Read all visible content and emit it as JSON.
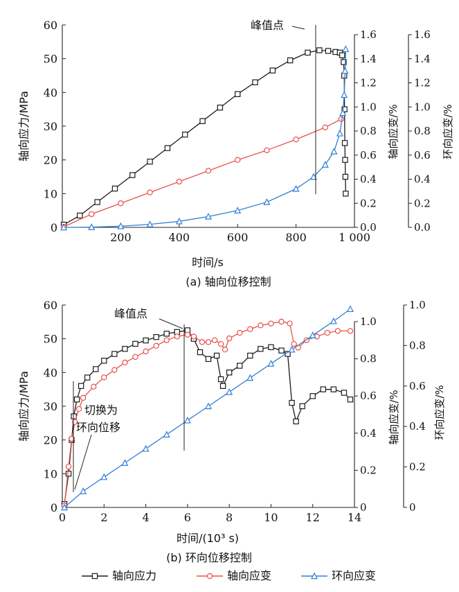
{
  "colors": {
    "axial_stress": "#1a1a1a",
    "axial_strain": "#e8504a",
    "hoop_strain": "#2f7fd2"
  },
  "legend": {
    "items": [
      {
        "label": "轴向应力",
        "color": "#1a1a1a",
        "marker": "square"
      },
      {
        "label": "轴向应变",
        "color": "#e8504a",
        "marker": "circle"
      },
      {
        "label": "环向应变",
        "color": "#2f7fd2",
        "marker": "triangle"
      }
    ]
  },
  "chart_data": [
    {
      "type": "line",
      "caption": "(a) 轴向位移控制",
      "xlabel": "时间/s",
      "ylabel_left": "轴向应力/MPa",
      "ylabel_right1": "轴向应变/%",
      "ylabel_right2": "环向应变/%",
      "xlim": [
        0,
        1000
      ],
      "ylim_left": [
        0,
        60
      ],
      "ylim_right": [
        0,
        1.6
      ],
      "x_ticks": [
        "200",
        "400",
        "600",
        "800",
        "1 000"
      ],
      "x_tick_values": [
        200,
        400,
        600,
        800,
        1000
      ],
      "y_left_ticks": [
        "0",
        "10",
        "20",
        "30",
        "40",
        "50",
        "60"
      ],
      "y_right_ticks": [
        "0.0",
        "0.2",
        "0.4",
        "0.6",
        "0.8",
        "1.0",
        "1.2",
        "1.4",
        "1.6"
      ],
      "annotation": {
        "text": "峰值点",
        "x": 920
      },
      "series": [
        {
          "name": "轴向应力",
          "axis": "left",
          "marker": "square",
          "x": [
            5,
            60,
            120,
            180,
            240,
            300,
            360,
            420,
            480,
            540,
            600,
            660,
            720,
            780,
            840,
            880,
            910,
            935,
            950,
            958,
            963,
            965,
            966,
            967,
            968,
            969,
            970
          ],
          "y": [
            0.8,
            3.5,
            7.5,
            11.5,
            15.5,
            19.5,
            23.5,
            27.5,
            31.5,
            35.5,
            39.5,
            43,
            46.5,
            49.5,
            51.8,
            52.5,
            52.3,
            52,
            51.8,
            51,
            49,
            45,
            35,
            25,
            20,
            15,
            10
          ]
        },
        {
          "name": "轴向应变",
          "axis": "right",
          "marker": "circle",
          "x": [
            5,
            100,
            200,
            300,
            400,
            500,
            600,
            700,
            800,
            900,
            955
          ],
          "y": [
            0.005,
            0.11,
            0.2,
            0.29,
            0.38,
            0.47,
            0.56,
            0.64,
            0.73,
            0.83,
            0.9
          ]
        },
        {
          "name": "环向应变",
          "axis": "right",
          "marker": "triangle",
          "x": [
            5,
            100,
            200,
            300,
            400,
            500,
            600,
            700,
            800,
            860,
            900,
            930,
            950,
            960,
            965,
            968,
            970
          ],
          "y": [
            0.0,
            0.002,
            0.01,
            0.025,
            0.05,
            0.09,
            0.14,
            0.21,
            0.32,
            0.42,
            0.52,
            0.63,
            0.78,
            0.95,
            1.1,
            1.3,
            1.48
          ]
        }
      ]
    },
    {
      "type": "line",
      "caption": "(b) 环向位移控制",
      "xlabel": "时间/(10³ s)",
      "ylabel_left": "轴向应力/MPa",
      "ylabel_right1": "轴向应变/%",
      "ylabel_right2": "环向应变/%",
      "xlim": [
        0,
        14
      ],
      "ylim_left": [
        0,
        60
      ],
      "ylim_right1": [
        0,
        1.0
      ],
      "ylim_right2": [
        0,
        1.0
      ],
      "x_ticks": [
        "0",
        "2",
        "4",
        "6",
        "8",
        "10",
        "12",
        "14"
      ],
      "x_tick_values": [
        0,
        2,
        4,
        6,
        8,
        10,
        12,
        14
      ],
      "y_left_ticks": [
        "0",
        "10",
        "20",
        "30",
        "40",
        "50",
        "60"
      ],
      "y_right1_ticks": [
        "0",
        "0.2",
        "0.4",
        "0.6",
        "0.8",
        "1.0"
      ],
      "y_right2_ticks": [
        "0",
        "0.2",
        "0.4",
        "0.6",
        "0.8",
        "1.0"
      ],
      "annotations": [
        {
          "text": "峰值点",
          "x": 6.0
        },
        {
          "text": "切换为\n环向位移",
          "x": 0.55
        }
      ],
      "series": [
        {
          "name": "轴向应力",
          "axis": "left",
          "marker": "square",
          "x": [
            0.1,
            0.3,
            0.45,
            0.55,
            0.7,
            0.9,
            1.2,
            1.6,
            2.0,
            2.5,
            3.0,
            3.5,
            4.0,
            4.5,
            5.0,
            5.5,
            6.0,
            6.3,
            6.6,
            7.0,
            7.4,
            7.6,
            7.7,
            8.0,
            8.5,
            9.0,
            9.5,
            10.0,
            10.5,
            10.8,
            11.0,
            11.2,
            11.5,
            12.0,
            12.5,
            13.0,
            13.5,
            13.8
          ],
          "y": [
            1,
            10,
            20,
            27,
            32,
            36,
            38.5,
            41,
            43.5,
            45.5,
            47,
            48.5,
            49.5,
            50.5,
            51.5,
            52,
            52.5,
            50,
            46,
            44,
            45,
            38,
            36,
            40,
            42,
            45,
            47,
            47.5,
            46.5,
            45.5,
            31,
            25.5,
            30,
            33,
            35,
            35,
            34,
            32
          ]
        },
        {
          "name": "轴向应变",
          "axis": "right1",
          "marker": "circle",
          "x": [
            0.1,
            0.3,
            0.45,
            0.6,
            0.8,
            1.0,
            1.5,
            2.0,
            2.5,
            3.0,
            3.5,
            4.0,
            4.5,
            5.0,
            5.5,
            6.0,
            6.3,
            6.7,
            7.0,
            7.3,
            7.6,
            7.8,
            8.0,
            8.5,
            9.0,
            9.5,
            10.0,
            10.5,
            10.9,
            11.1,
            11.3,
            11.7,
            12.2,
            12.7,
            13.2,
            13.8
          ],
          "y": [
            0.01,
            0.22,
            0.37,
            0.46,
            0.53,
            0.59,
            0.65,
            0.7,
            0.74,
            0.78,
            0.81,
            0.84,
            0.87,
            0.9,
            0.92,
            0.93,
            0.92,
            0.89,
            0.89,
            0.9,
            0.88,
            0.85,
            0.91,
            0.94,
            0.96,
            0.98,
            0.99,
            1.0,
            0.99,
            0.88,
            0.86,
            0.9,
            0.92,
            0.94,
            0.95,
            0.95
          ]
        },
        {
          "name": "环向应变",
          "axis": "right2",
          "marker": "triangle",
          "x": [
            0.1,
            1.0,
            2.0,
            3.0,
            4.0,
            5.0,
            6.0,
            7.0,
            8.0,
            9.0,
            10.0,
            11.0,
            12.0,
            13.0,
            13.8
          ],
          "y": [
            0.0,
            0.08,
            0.15,
            0.22,
            0.29,
            0.36,
            0.43,
            0.5,
            0.57,
            0.64,
            0.71,
            0.78,
            0.85,
            0.92,
            0.98
          ]
        }
      ]
    }
  ]
}
